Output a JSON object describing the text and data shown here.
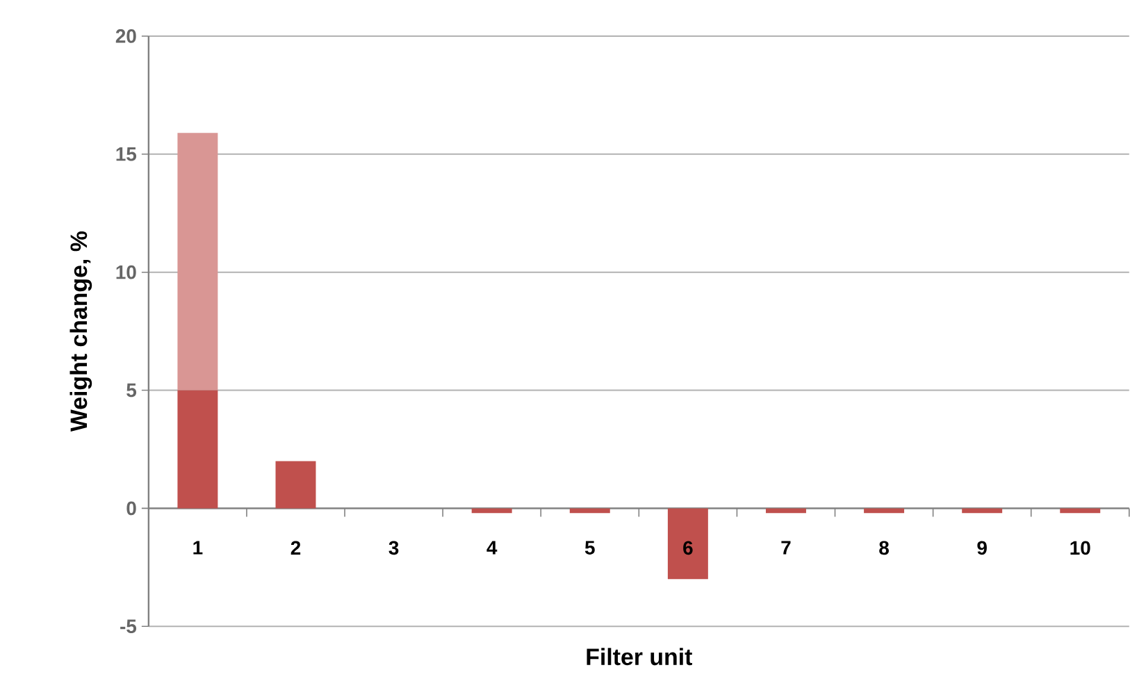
{
  "chart_data": {
    "type": "bar",
    "stacked": true,
    "xlabel": "Filter unit",
    "ylabel": "Weight change, %",
    "categories": [
      "1",
      "2",
      "3",
      "4",
      "5",
      "6",
      "7",
      "8",
      "9",
      "10"
    ],
    "series": [
      {
        "color": "#c0504d",
        "values": [
          5,
          2,
          0,
          -0.2,
          -0.2,
          -3,
          -0.2,
          -0.2,
          -0.2,
          -0.2
        ]
      },
      {
        "color": "#d99694",
        "values": [
          10.9,
          0,
          0,
          0,
          0,
          0,
          0,
          0,
          0,
          0
        ]
      }
    ],
    "ylim": [
      -5,
      20
    ],
    "yticks": [
      -5,
      0,
      5,
      10,
      15,
      20
    ],
    "grid": "y"
  }
}
